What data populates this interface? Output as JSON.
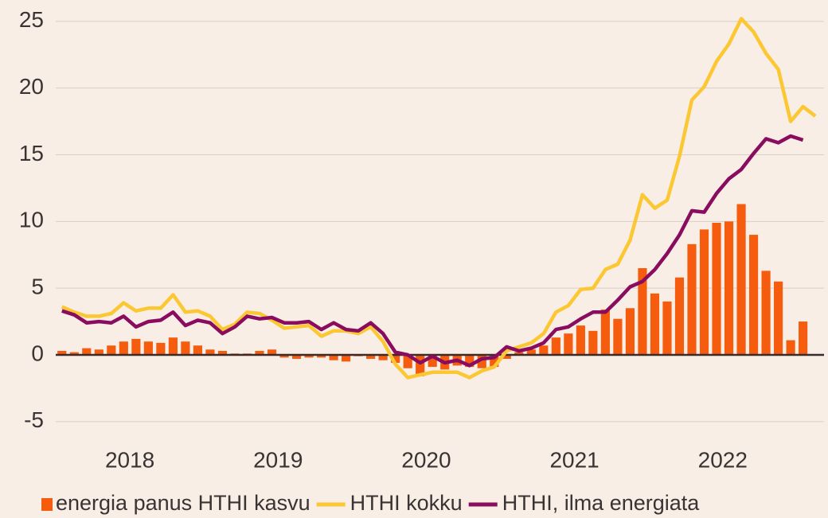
{
  "chart_data": {
    "type": "bar_line",
    "x": [
      0,
      1,
      2,
      3,
      4,
      5,
      6,
      7,
      8,
      9,
      10,
      11,
      12,
      13,
      14,
      15,
      16,
      17,
      18,
      19,
      20,
      21,
      22,
      23,
      24,
      25,
      26,
      27,
      28,
      29,
      30,
      31,
      32,
      33,
      34,
      35,
      36,
      37,
      38,
      39,
      40,
      41,
      42,
      43,
      44,
      45,
      46,
      47,
      48,
      49,
      50,
      51,
      52,
      53,
      54,
      55,
      56,
      57,
      58,
      59,
      60,
      61
    ],
    "xlim": [
      -0.5,
      61.7
    ],
    "xticks": [
      {
        "value": 5.5,
        "label": "2018"
      },
      {
        "value": 17.5,
        "label": "2019"
      },
      {
        "value": 29.5,
        "label": "2020"
      },
      {
        "value": 41.5,
        "label": "2021"
      },
      {
        "value": 53.5,
        "label": "2022"
      }
    ],
    "ylim": [
      -6.8,
      26.6
    ],
    "yticks": [
      -5,
      0,
      5,
      10,
      15,
      20,
      25
    ],
    "grid": true,
    "series": [
      {
        "name": "energia panus HTHI kasvu",
        "type": "bar",
        "color": "#f65c0d",
        "values": [
          0.3,
          0.2,
          0.5,
          0.4,
          0.7,
          1.0,
          1.2,
          1.0,
          0.9,
          1.3,
          1.0,
          0.7,
          0.4,
          0.3,
          0.1,
          0.1,
          0.3,
          0.4,
          -0.2,
          -0.3,
          -0.2,
          -0.2,
          -0.4,
          -0.5,
          -0.1,
          -0.3,
          -0.4,
          -0.6,
          -1.0,
          -1.6,
          -0.9,
          -1.1,
          -0.8,
          -0.9,
          -1.0,
          -0.9,
          -0.3,
          0.2,
          0.4,
          0.7,
          1.3,
          1.6,
          2.2,
          1.8,
          3.4,
          2.7,
          3.5,
          6.5,
          4.6,
          4.0,
          5.8,
          8.3,
          9.4,
          9.9,
          10.0,
          11.3,
          9.0,
          6.3,
          5.5,
          1.1,
          2.5,
          null
        ]
      },
      {
        "name": "HTHI kokku",
        "type": "line",
        "color": "#fbc733",
        "values": [
          3.6,
          3.2,
          2.9,
          2.9,
          3.1,
          3.9,
          3.3,
          3.5,
          3.5,
          4.5,
          3.2,
          3.3,
          2.9,
          1.9,
          2.3,
          3.2,
          3.1,
          2.6,
          2.0,
          2.1,
          2.2,
          1.4,
          1.8,
          1.8,
          1.6,
          2.1,
          1.0,
          -0.7,
          -1.7,
          -1.5,
          -1.3,
          -1.3,
          -1.3,
          -1.7,
          -1.2,
          -0.9,
          0.3,
          0.6,
          0.9,
          1.6,
          3.2,
          3.7,
          4.9,
          5.0,
          6.4,
          6.8,
          8.6,
          12.0,
          11.0,
          11.6,
          14.9,
          19.1,
          20.1,
          22.0,
          23.3,
          25.2,
          24.2,
          22.6,
          21.4,
          17.5,
          18.6,
          17.9
        ]
      },
      {
        "name": "HTHI, ilma energiata",
        "type": "line",
        "color": "#8a0c5f",
        "values": [
          3.3,
          3.0,
          2.4,
          2.5,
          2.4,
          2.9,
          2.1,
          2.5,
          2.6,
          3.2,
          2.2,
          2.6,
          2.4,
          1.6,
          2.1,
          2.9,
          2.7,
          2.8,
          2.4,
          2.4,
          2.5,
          1.9,
          2.4,
          1.9,
          1.8,
          2.4,
          1.6,
          0.2,
          0.0,
          -0.6,
          -0.1,
          -0.6,
          -0.4,
          -0.8,
          -0.3,
          -0.2,
          0.6,
          0.3,
          0.5,
          0.9,
          1.9,
          2.1,
          2.7,
          3.2,
          3.2,
          4.1,
          5.1,
          5.5,
          6.4,
          7.6,
          9.0,
          10.8,
          10.7,
          12.1,
          13.2,
          13.9,
          15.1,
          16.2,
          15.9,
          16.4,
          16.1,
          null
        ]
      }
    ]
  }
}
